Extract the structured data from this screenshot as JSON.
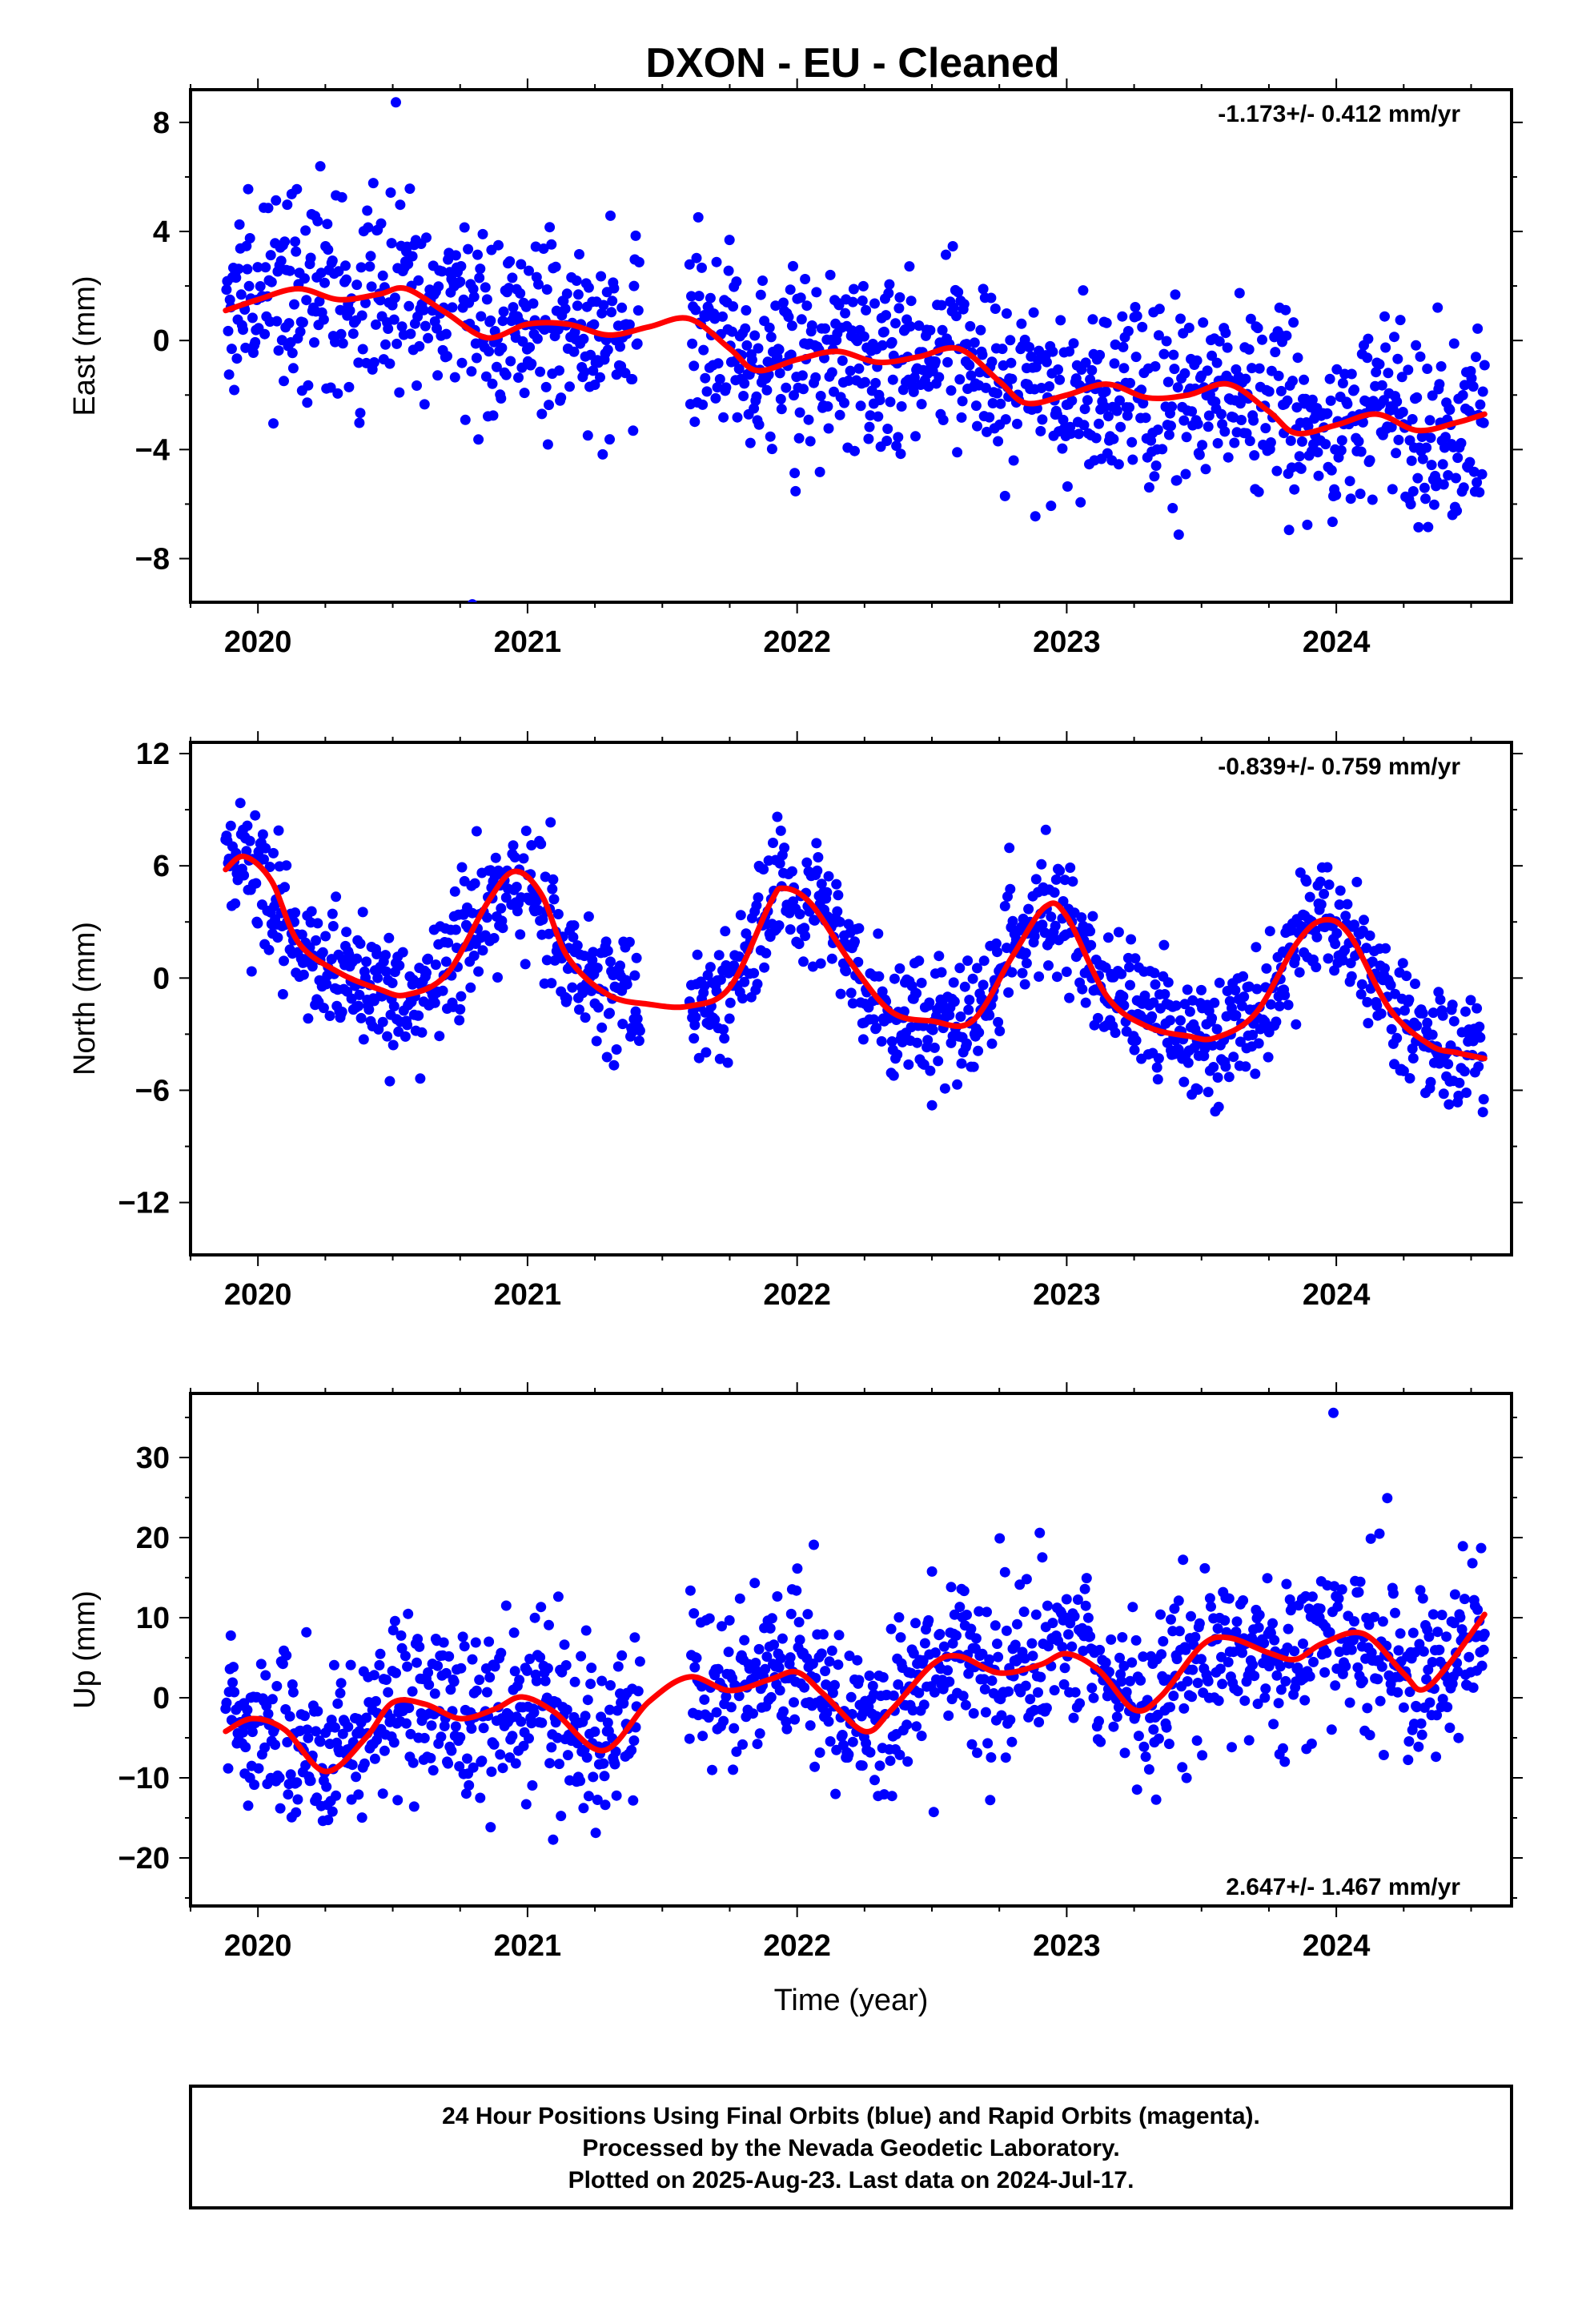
{
  "title": "DXON  - EU - Cleaned",
  "colors": {
    "final_orbits": "#0000ff",
    "fit": "#ff0000",
    "frame": "#000000"
  },
  "chart_data": [
    {
      "type": "scatter",
      "title": "DXON  - EU - Cleaned",
      "xlabel": "",
      "ylabel": "East (mm)",
      "xlim": [
        2019.75,
        2024.65
      ],
      "ylim": [
        -9.6,
        9.2
      ],
      "xticks": [
        2020,
        2021,
        2022,
        2023,
        2024
      ],
      "xtick_labels": [
        "2020",
        "2021",
        "2022",
        "2023",
        "2024"
      ],
      "yticks": [
        -8,
        -4,
        0,
        4,
        8
      ],
      "ytick_labels": [
        "−8",
        "−4",
        "0",
        "4",
        "8"
      ],
      "rate": "-1.173+/- 0.412 mm/yr",
      "rate_position": "top-right",
      "data_range": [
        2019.88,
        2024.55
      ],
      "gaps": [
        [
          2021.42,
          2021.6
        ]
      ],
      "series": [
        {
          "name": "Final Orbits (blue)",
          "kind": "points",
          "count": 1450,
          "spread": 1.7,
          "note": "daily 24-hour positions"
        },
        {
          "name": "fit",
          "kind": "line",
          "x": [
            2019.88,
            2020.0,
            2020.15,
            2020.3,
            2020.45,
            2020.55,
            2020.7,
            2020.85,
            2021.0,
            2021.15,
            2021.3,
            2021.45,
            2021.6,
            2021.75,
            2021.85,
            2022.0,
            2022.15,
            2022.3,
            2022.45,
            2022.6,
            2022.75,
            2022.85,
            2023.0,
            2023.15,
            2023.3,
            2023.45,
            2023.6,
            2023.75,
            2023.85,
            2024.0,
            2024.15,
            2024.3,
            2024.45,
            2024.55
          ],
          "y": [
            1.1,
            1.5,
            1.9,
            1.5,
            1.7,
            1.9,
            1.0,
            0.1,
            0.6,
            0.6,
            0.2,
            0.5,
            0.8,
            -0.3,
            -1.1,
            -0.7,
            -0.4,
            -0.8,
            -0.6,
            -0.3,
            -1.5,
            -2.3,
            -2.0,
            -1.6,
            -2.1,
            -2.0,
            -1.6,
            -2.6,
            -3.4,
            -3.1,
            -2.7,
            -3.3,
            -3.0,
            -2.7
          ]
        }
      ]
    },
    {
      "type": "scatter",
      "xlabel": "",
      "ylabel": "North (mm)",
      "xlim": [
        2019.75,
        2024.65
      ],
      "ylim": [
        -14.8,
        12.6
      ],
      "xticks": [
        2020,
        2021,
        2022,
        2023,
        2024
      ],
      "xtick_labels": [
        "2020",
        "2021",
        "2022",
        "2023",
        "2024"
      ],
      "yticks": [
        -12,
        -6,
        0,
        6,
        12
      ],
      "ytick_labels": [
        "−12",
        "−6",
        "0",
        "6",
        "12"
      ],
      "rate": "-0.839+/- 0.759 mm/yr",
      "rate_position": "top-right",
      "data_range": [
        2019.88,
        2024.55
      ],
      "gaps": [
        [
          2021.42,
          2021.6
        ]
      ],
      "series": [
        {
          "name": "Final Orbits (blue)",
          "kind": "points",
          "count": 1450,
          "spread": 1.6,
          "note": "daily 24-hour positions"
        },
        {
          "name": "fit",
          "kind": "line",
          "x": [
            2019.88,
            2019.95,
            2020.05,
            2020.15,
            2020.3,
            2020.45,
            2020.55,
            2020.7,
            2020.85,
            2020.95,
            2021.05,
            2021.15,
            2021.3,
            2021.45,
            2021.6,
            2021.75,
            2021.9,
            2021.95,
            2022.05,
            2022.2,
            2022.35,
            2022.5,
            2022.65,
            2022.8,
            2022.92,
            2023.0,
            2023.15,
            2023.3,
            2023.45,
            2023.55,
            2023.7,
            2023.85,
            2023.95,
            2024.05,
            2024.2,
            2024.35,
            2024.45,
            2024.55
          ],
          "y": [
            5.8,
            6.5,
            5.2,
            1.9,
            0.3,
            -0.6,
            -0.9,
            0.2,
            4.0,
            5.7,
            4.5,
            1.1,
            -0.9,
            -1.4,
            -1.5,
            -0.5,
            4.0,
            4.8,
            4.0,
            0.8,
            -1.8,
            -2.3,
            -2.3,
            1.2,
            3.8,
            3.3,
            -1.0,
            -2.6,
            -3.1,
            -3.2,
            -1.9,
            1.8,
            3.1,
            2.3,
            -1.7,
            -3.6,
            -4.0,
            -4.3
          ]
        }
      ]
    },
    {
      "type": "scatter",
      "xlabel": "Time (year)",
      "ylabel": "Up (mm)",
      "xlim": [
        2019.75,
        2024.65
      ],
      "ylim": [
        -26.0,
        38.0
      ],
      "xticks": [
        2020,
        2021,
        2022,
        2023,
        2024
      ],
      "xtick_labels": [
        "2020",
        "2021",
        "2022",
        "2023",
        "2024"
      ],
      "yticks": [
        -20,
        -10,
        0,
        10,
        20,
        30
      ],
      "ytick_labels": [
        "−20",
        "−10",
        "0",
        "10",
        "20",
        "30"
      ],
      "rate": "2.647+/- 1.467 mm/yr",
      "rate_position": "bottom-right",
      "data_range": [
        2019.88,
        2024.55
      ],
      "gaps": [
        [
          2021.42,
          2021.6
        ]
      ],
      "series": [
        {
          "name": "Final Orbits (blue)",
          "kind": "points",
          "count": 1450,
          "spread": 5.0,
          "note": "daily 24-hour positions"
        },
        {
          "name": "fit",
          "kind": "line",
          "x": [
            2019.88,
            2019.98,
            2020.1,
            2020.25,
            2020.4,
            2020.5,
            2020.62,
            2020.75,
            2020.88,
            2020.98,
            2021.1,
            2021.28,
            2021.45,
            2021.6,
            2021.75,
            2021.9,
            2022.0,
            2022.1,
            2022.25,
            2022.35,
            2022.5,
            2022.6,
            2022.75,
            2022.9,
            2023.0,
            2023.12,
            2023.25,
            2023.35,
            2023.5,
            2023.6,
            2023.75,
            2023.85,
            2023.95,
            2024.1,
            2024.25,
            2024.32,
            2024.42,
            2024.55
          ],
          "y": [
            -4.2,
            -2.6,
            -4.0,
            -9.2,
            -5.0,
            -0.6,
            -0.8,
            -2.6,
            -1.4,
            0.1,
            -1.8,
            -6.6,
            -0.5,
            2.6,
            0.9,
            2.3,
            3.2,
            0.4,
            -4.2,
            -1.5,
            4.1,
            5.2,
            3.1,
            4.1,
            5.5,
            3.4,
            -1.5,
            0.2,
            6.5,
            7.5,
            5.6,
            4.8,
            6.8,
            8.0,
            3.0,
            1.0,
            4.3,
            10.4
          ]
        }
      ]
    }
  ],
  "footer": {
    "line1": "24 Hour Positions Using Final Orbits (blue) and Rapid Orbits (magenta).",
    "line2": "Processed by the Nevada Geodetic Laboratory.",
    "line3": "Plotted on 2025-Aug-23. Last data on 2024-Jul-17."
  }
}
